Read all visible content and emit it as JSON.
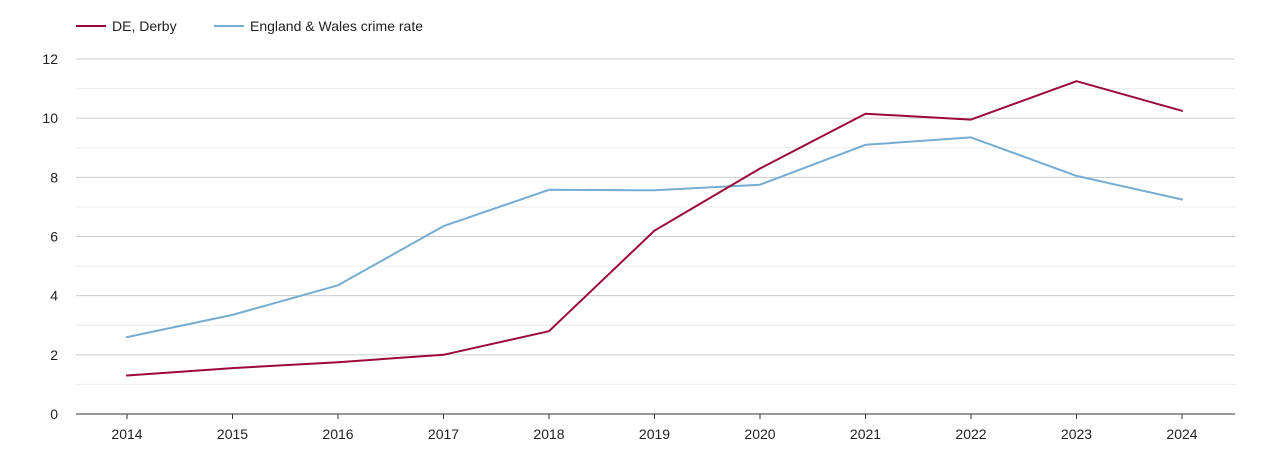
{
  "chart_data": {
    "type": "line",
    "title": "",
    "xlabel": "",
    "ylabel": "",
    "categories": [
      "2014",
      "2015",
      "2016",
      "2017",
      "2018",
      "2019",
      "2020",
      "2021",
      "2022",
      "2023",
      "2024"
    ],
    "ylim": [
      0,
      12
    ],
    "yticks": [
      "0",
      "2",
      "4",
      "6",
      "8",
      "10",
      "12"
    ],
    "grid": true,
    "legend_position": "top-left",
    "series": [
      {
        "name": "DE, Derby",
        "color": "#9b0a36",
        "values": [
          1.3,
          1.55,
          1.75,
          2.0,
          2.8,
          6.2,
          8.3,
          10.15,
          9.95,
          11.25,
          10.25
        ]
      },
      {
        "name": "England & Wales crime rate",
        "color": "#76acd0",
        "values": [
          2.6,
          3.35,
          4.35,
          6.35,
          7.58,
          7.56,
          7.75,
          9.1,
          9.35,
          8.05,
          7.25
        ]
      }
    ]
  }
}
